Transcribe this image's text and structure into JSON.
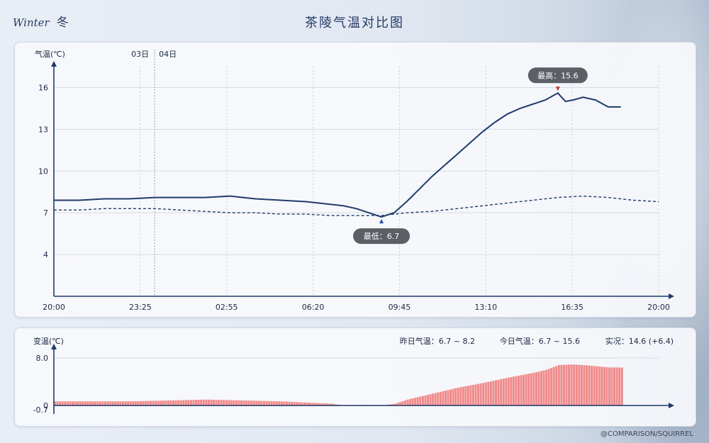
{
  "brand": {
    "en": "Winter",
    "cn": "冬"
  },
  "title": "茶陵气温对比图",
  "footer": "@COMPARISON/SQUIRREL",
  "colors": {
    "today": "#213b6b",
    "yesterday": "#213b6b",
    "diff": "#f08a8a",
    "axis": "#1e3a6a",
    "badge": "#5b5f66"
  },
  "chart_data": [
    {
      "type": "line",
      "ylabel": "气温(℃)",
      "ylim": [
        1,
        17.5
      ],
      "yticks": [
        4,
        7,
        10,
        13,
        16
      ],
      "xticks": [
        "20:00",
        "23:25",
        "02:55",
        "06:20",
        "09:45",
        "13:10",
        "16:35",
        "20:00"
      ],
      "day_labels": [
        "03日",
        "04日"
      ],
      "x_unit": "hours since 20:00 (03日)",
      "xlim": [
        0,
        24
      ],
      "series": [
        {
          "name": "今日气温",
          "style": "solid",
          "x": [
            0,
            1,
            2,
            3,
            4,
            5,
            6,
            7,
            7.5,
            8,
            9,
            10,
            11,
            11.5,
            12,
            12.5,
            13,
            13.5,
            14,
            14.5,
            15,
            15.5,
            16,
            16.5,
            17,
            17.5,
            18,
            18.5,
            19,
            19.5,
            20,
            20.3,
            20.6,
            21,
            21.5,
            21.8,
            22,
            22.5
          ],
          "values": [
            7.9,
            7.9,
            8.0,
            8.0,
            8.1,
            8.1,
            8.1,
            8.2,
            8.1,
            8.0,
            7.9,
            7.8,
            7.6,
            7.5,
            7.3,
            7.0,
            6.7,
            7.0,
            7.8,
            8.7,
            9.6,
            10.4,
            11.2,
            12.0,
            12.8,
            13.5,
            14.1,
            14.5,
            14.8,
            15.1,
            15.6,
            15.0,
            15.1,
            15.3,
            15.1,
            14.8,
            14.6,
            14.6
          ]
        },
        {
          "name": "昨日气温",
          "style": "dashed",
          "x": [
            0,
            1,
            2,
            3,
            4,
            5,
            6,
            7,
            8,
            9,
            10,
            11,
            12,
            13,
            14,
            15,
            16,
            17,
            18,
            19,
            20,
            21,
            22,
            23,
            24
          ],
          "values": [
            7.2,
            7.2,
            7.3,
            7.3,
            7.3,
            7.2,
            7.1,
            7.0,
            7.0,
            6.9,
            6.9,
            6.8,
            6.8,
            6.8,
            7.0,
            7.1,
            7.3,
            7.5,
            7.7,
            7.9,
            8.1,
            8.2,
            8.1,
            7.9,
            7.8
          ]
        }
      ],
      "annotations": {
        "max_label": "最高：15.6",
        "min_label": "最低：6.7",
        "max_x": 20,
        "max_y": 15.6,
        "min_x": 13,
        "min_y": 6.7
      }
    },
    {
      "type": "bar",
      "ylabel": "变温(℃)",
      "ylim": [
        -0.7,
        8.0
      ],
      "yticks": [
        "8.0",
        "0",
        "-0.7"
      ],
      "x_unit": "hours since 20:00 (03日)",
      "summary": {
        "yesterday": "昨日气温：6.7 ~ 8.2",
        "today": "今日气温：6.7 ~ 15.6",
        "current": "实况：14.6 (+6.4)"
      },
      "x": [
        0,
        1,
        2,
        3,
        4,
        5,
        6,
        7,
        8,
        9,
        10,
        11,
        11.5,
        12,
        12.5,
        13,
        13.5,
        14,
        15,
        16,
        17,
        18,
        19,
        19.5,
        20,
        20.5,
        21,
        21.5,
        22,
        22.5
      ],
      "values": [
        0.7,
        0.7,
        0.7,
        0.7,
        0.8,
        0.9,
        1.0,
        0.9,
        0.8,
        0.7,
        0.5,
        0.3,
        0.0,
        -0.1,
        -0.1,
        0.0,
        0.3,
        1.0,
        2.0,
        3.0,
        3.8,
        4.7,
        5.5,
        6.0,
        6.8,
        6.9,
        6.8,
        6.6,
        6.4,
        6.4
      ]
    }
  ]
}
